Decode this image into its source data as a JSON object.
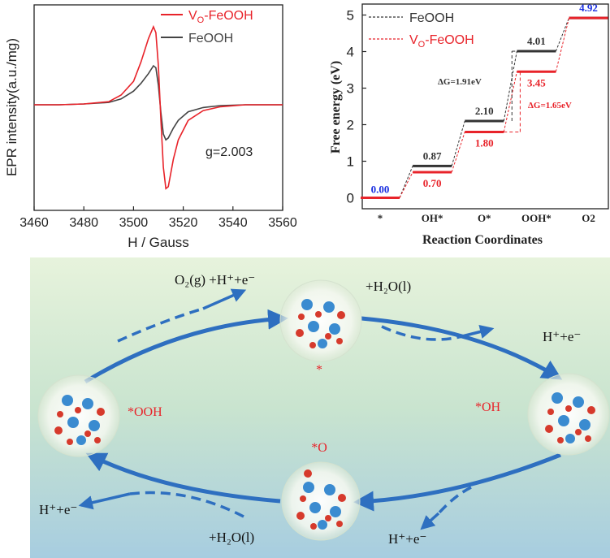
{
  "colors": {
    "vo_feooh": "#e8232a",
    "feooh": "#444444",
    "zero_value": "#1a2fe0",
    "top_value": "#1a2fe0",
    "arrow": "#2e6fc0",
    "energy_black": "#333333",
    "energy_red": "#e8232a"
  },
  "chart_data": [
    {
      "type": "line",
      "title": "",
      "xlabel": "H / Gauss",
      "ylabel": "EPR intensity(a.u./mg)",
      "xlim": [
        3460,
        3560
      ],
      "x_ticks": [
        "3460",
        "3480",
        "3500",
        "3520",
        "3540",
        "3560"
      ],
      "legend": [
        "V_O-FeOOH",
        "FeOOH"
      ],
      "legend_position": "top-right",
      "annotation": "g=2.003",
      "series": [
        {
          "name": "V_O-FeOOH",
          "x": [
            3460,
            3470,
            3480,
            3490,
            3495,
            3500,
            3503,
            3506,
            3508,
            3509,
            3510,
            3511,
            3512,
            3513,
            3514,
            3516,
            3518,
            3522,
            3528,
            3535,
            3545,
            3560
          ],
          "y": [
            0,
            0,
            0.02,
            0.08,
            0.25,
            0.6,
            1.1,
            1.7,
            2.0,
            1.85,
            1.0,
            -0.4,
            -1.6,
            -2.15,
            -2.1,
            -1.4,
            -0.9,
            -0.4,
            -0.15,
            -0.05,
            0,
            0
          ]
        },
        {
          "name": "FeOOH",
          "x": [
            3460,
            3470,
            3480,
            3490,
            3495,
            3500,
            3503,
            3506,
            3508,
            3509,
            3510,
            3511,
            3512,
            3513,
            3514,
            3516,
            3518,
            3522,
            3528,
            3535,
            3545,
            3560
          ],
          "y": [
            0,
            0,
            0.02,
            0.06,
            0.15,
            0.35,
            0.55,
            0.8,
            1.0,
            0.95,
            0.5,
            -0.2,
            -0.75,
            -0.9,
            -0.85,
            -0.6,
            -0.4,
            -0.18,
            -0.07,
            -0.02,
            0,
            0
          ]
        }
      ]
    },
    {
      "type": "line",
      "title": "",
      "xlabel": "Reaction Coordinates",
      "ylabel": "Free energy (eV)",
      "ylim": [
        -0.3,
        5.3
      ],
      "y_ticks": [
        "0",
        "1",
        "2",
        "3",
        "4",
        "5"
      ],
      "categories": [
        "*",
        "OH*",
        "O*",
        "OOH*",
        "O2"
      ],
      "legend": [
        "FeOOH",
        "V_O-FeOOH"
      ],
      "legend_position": "top-left",
      "series": [
        {
          "name": "FeOOH",
          "values": [
            0.0,
            0.87,
            2.1,
            4.01,
            4.92
          ],
          "labels": [
            "0.00",
            "0.87",
            "2.10",
            "4.01",
            "4.92"
          ]
        },
        {
          "name": "V_O-FeOOH",
          "values": [
            0.0,
            0.7,
            1.8,
            3.45,
            4.92
          ],
          "labels": [
            "0.00",
            "0.70",
            "1.80",
            "3.45",
            "4.92"
          ]
        }
      ],
      "annotations": [
        "ΔG=1.91eV",
        "ΔG=1.65eV"
      ]
    }
  ],
  "mechanism": {
    "states": {
      "top": "*",
      "right": "*OH",
      "bottom": "*O",
      "left": "*OOH"
    },
    "labels": {
      "o2_release": "O₂(g) +H⁺+e⁻",
      "h2o_top": "+H₂O(l)",
      "h_e_right": "H⁺+e⁻",
      "h_e_bottom_right": "H⁺+e⁻",
      "h2o_bottom": "+H₂O(l)",
      "h_e_left": "H⁺+e⁻"
    }
  }
}
